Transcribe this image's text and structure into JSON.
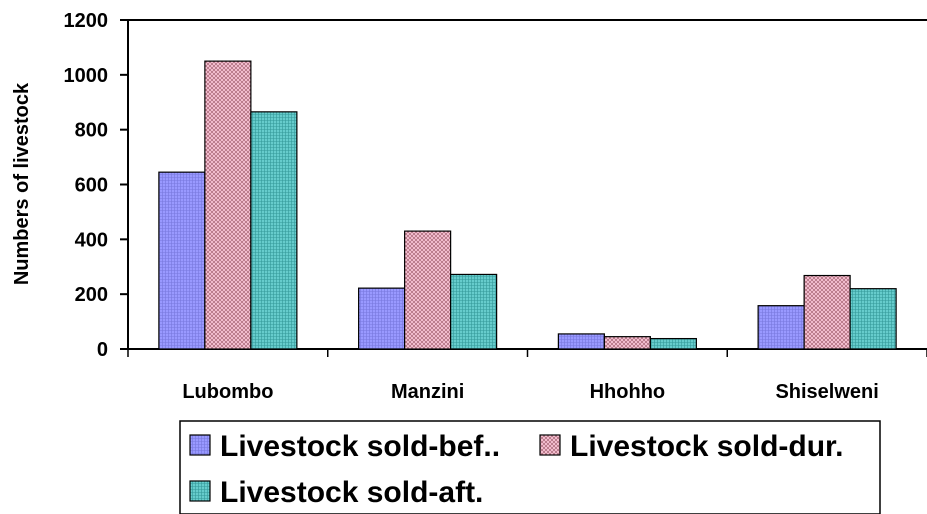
{
  "chart_data": {
    "type": "bar",
    "title": "",
    "xlabel": "",
    "ylabel": "Numbers of livestock",
    "ylim": [
      0,
      1200
    ],
    "yticks": [
      0,
      200,
      400,
      600,
      800,
      1000,
      1200
    ],
    "grid": false,
    "legend_position": "bottom",
    "categories": [
      "Lubombo",
      "Manzini",
      "Hhohho",
      "Shiselweni"
    ],
    "series": [
      {
        "name": "Livestock sold-bef..",
        "color": "#9999ff",
        "pattern": "grid",
        "values": [
          645,
          222,
          55,
          158
        ]
      },
      {
        "name": "Livestock sold-dur.",
        "color": "#ffccdd",
        "pattern": "diagonal",
        "values": [
          1050,
          430,
          45,
          268
        ]
      },
      {
        "name": "Livestock sold-aft.",
        "color": "#66cccc",
        "pattern": "grid",
        "values": [
          865,
          272,
          38,
          220
        ]
      }
    ]
  }
}
